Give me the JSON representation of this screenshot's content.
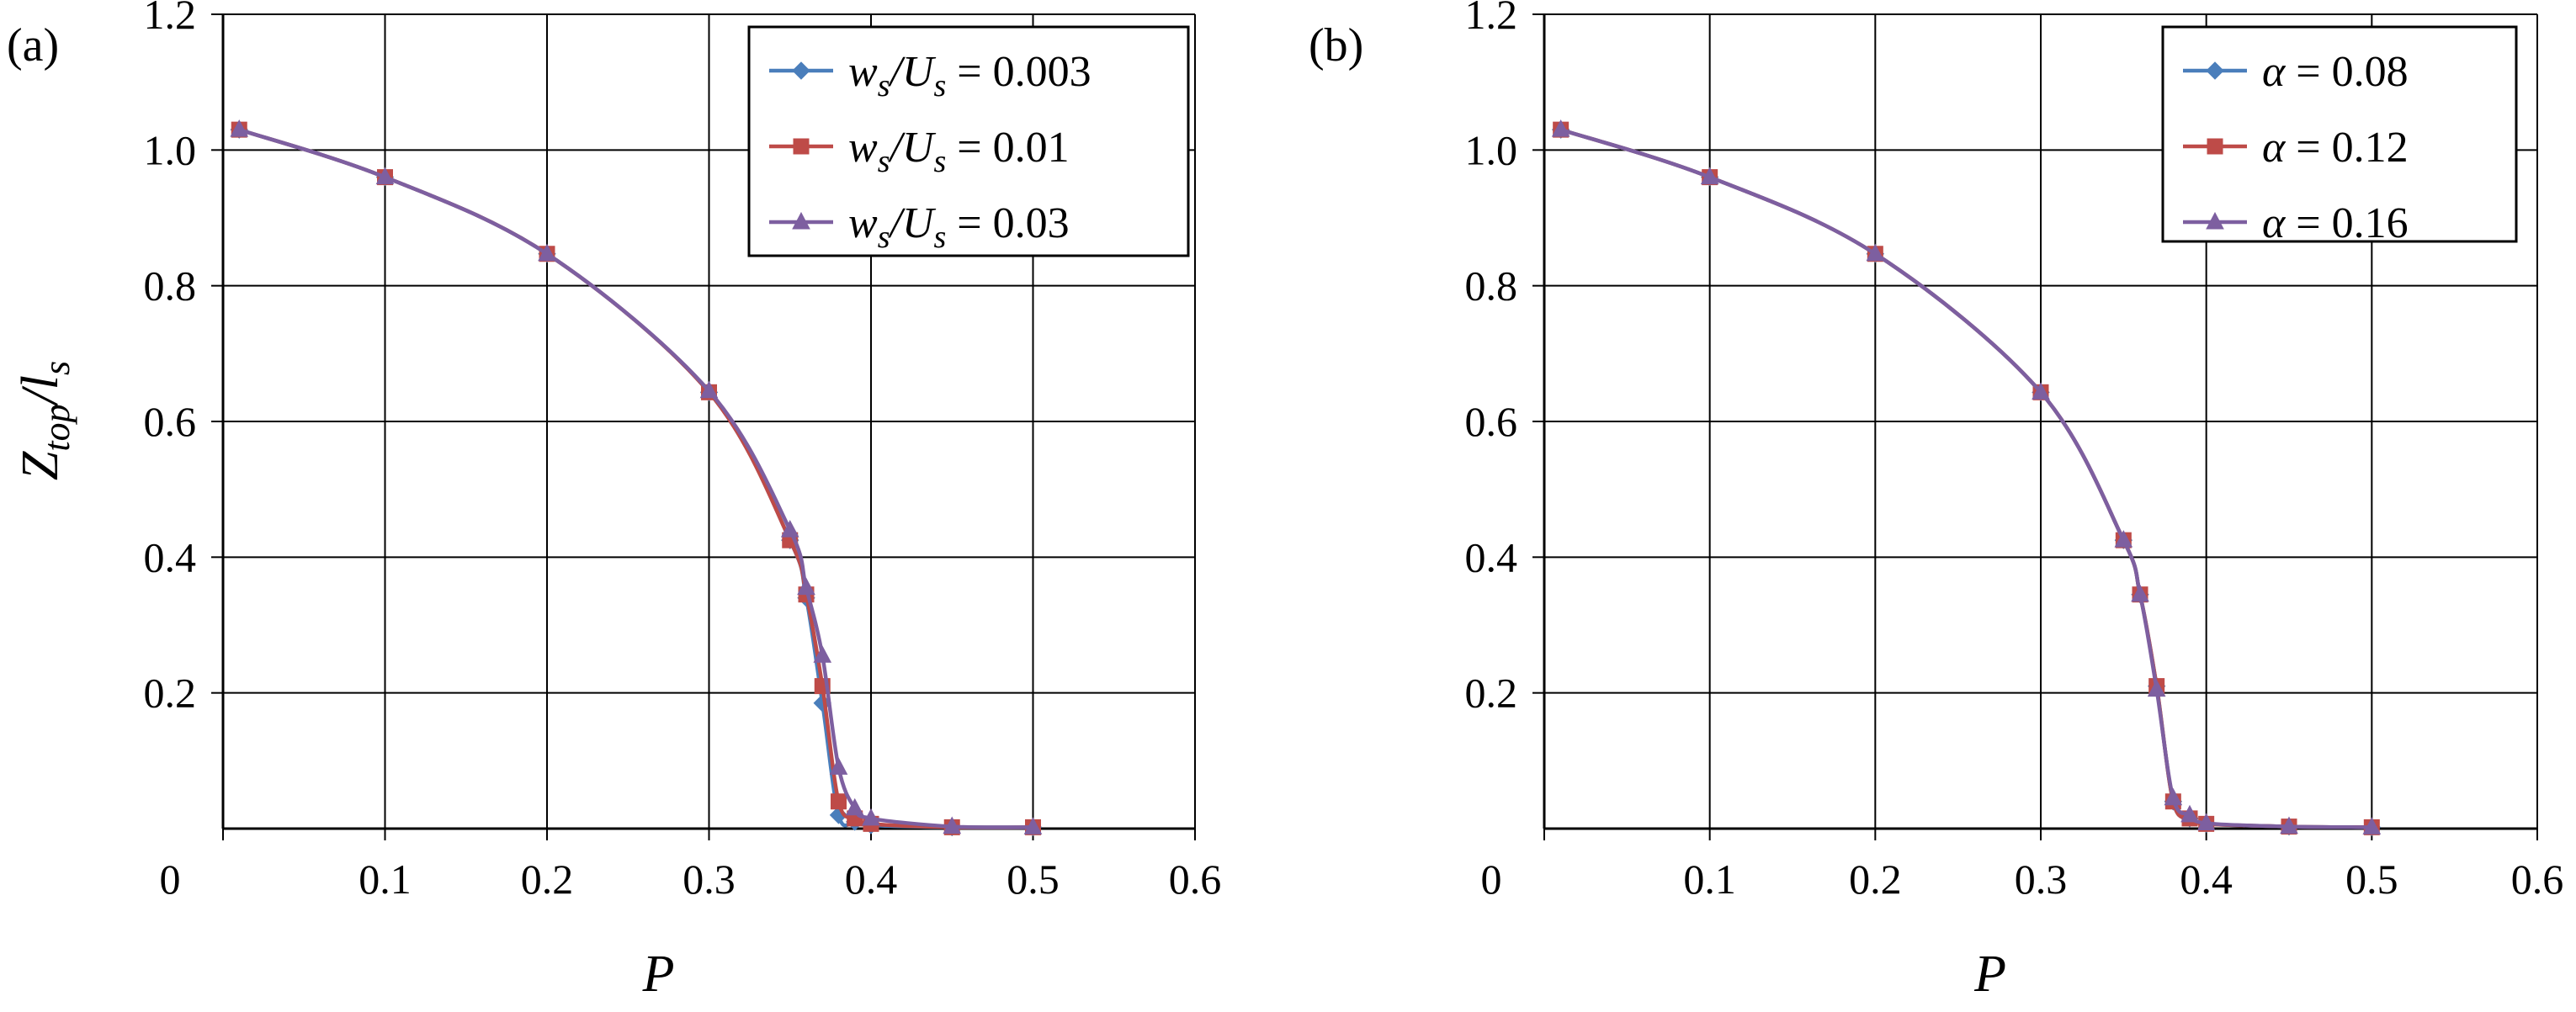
{
  "chart_data": [
    {
      "type": "line",
      "panel_label": "(a)",
      "xlabel": "P",
      "ylabel": "Z_top/l_s",
      "xlim": [
        0,
        0.6
      ],
      "ylim": [
        0,
        1.2
      ],
      "x_ticks": [
        0,
        0.1,
        0.2,
        0.3,
        0.4,
        0.5,
        0.6
      ],
      "x_tick_labels": [
        "0",
        "0.1",
        "0.2",
        "0.3",
        "0.4",
        "0.5",
        "0.6"
      ],
      "y_ticks": [
        0.2,
        0.4,
        0.6,
        0.8,
        1.0,
        1.2
      ],
      "y_tick_labels": [
        "0.2",
        "0.4",
        "0.6",
        "0.8",
        "1.0",
        "1.2"
      ],
      "grid": true,
      "legend_position": "top-right",
      "series": [
        {
          "name": "w_s/U_s = 0.003",
          "legend": {
            "lhs": "w",
            "lhs_sub": "s",
            "mid": "/U",
            "mid_sub": "s",
            "rhs": " = 0.003"
          },
          "color": "#4a7ebb",
          "marker": "diamond",
          "x": [
            0.01,
            0.1,
            0.2,
            0.3,
            0.35,
            0.36,
            0.37,
            0.38,
            0.39,
            0.4,
            0.45,
            0.5
          ],
          "y": [
            1.03,
            0.96,
            0.847,
            0.643,
            0.425,
            0.34,
            0.185,
            0.02,
            0.01,
            0.005,
            0.002,
            0.002
          ]
        },
        {
          "name": "w_s/U_s = 0.01",
          "legend": {
            "lhs": "w",
            "lhs_sub": "s",
            "mid": "/U",
            "mid_sub": "s",
            "rhs": " = 0.01"
          },
          "color": "#be4b48",
          "marker": "square",
          "x": [
            0.01,
            0.1,
            0.2,
            0.3,
            0.35,
            0.36,
            0.37,
            0.38,
            0.39,
            0.4,
            0.45,
            0.5
          ],
          "y": [
            1.03,
            0.96,
            0.847,
            0.643,
            0.425,
            0.345,
            0.21,
            0.04,
            0.015,
            0.007,
            0.002,
            0.002
          ]
        },
        {
          "name": "w_s/U_s = 0.03",
          "legend": {
            "lhs": "w",
            "lhs_sub": "s",
            "mid": "/U",
            "mid_sub": "s",
            "rhs": " = 0.03"
          },
          "color": "#7d5fa0",
          "marker": "triangle",
          "x": [
            0.01,
            0.1,
            0.2,
            0.3,
            0.35,
            0.36,
            0.37,
            0.38,
            0.39,
            0.4,
            0.45,
            0.5
          ],
          "y": [
            1.03,
            0.96,
            0.847,
            0.645,
            0.44,
            0.355,
            0.255,
            0.09,
            0.03,
            0.015,
            0.003,
            0.002
          ]
        }
      ]
    },
    {
      "type": "line",
      "panel_label": "(b)",
      "xlabel": "P",
      "ylabel": "",
      "xlim": [
        0,
        0.6
      ],
      "ylim": [
        0,
        1.2
      ],
      "x_ticks": [
        0,
        0.1,
        0.2,
        0.3,
        0.4,
        0.5,
        0.6
      ],
      "x_tick_labels": [
        "0",
        "0.1",
        "0.2",
        "0.3",
        "0.4",
        "0.5",
        "0.6"
      ],
      "y_ticks": [
        0.2,
        0.4,
        0.6,
        0.8,
        1.0,
        1.2
      ],
      "y_tick_labels": [
        "0.2",
        "0.4",
        "0.6",
        "0.8",
        "1.0",
        "1.2"
      ],
      "grid": true,
      "legend_position": "top-right",
      "series": [
        {
          "name": "α = 0.08",
          "legend": {
            "lhs": "α",
            "lhs_sub": "",
            "mid": "",
            "mid_sub": "",
            "rhs": " = 0.08"
          },
          "color": "#4a7ebb",
          "marker": "diamond",
          "x": [
            0.01,
            0.1,
            0.2,
            0.3,
            0.35,
            0.36,
            0.37,
            0.38,
            0.39,
            0.4,
            0.45,
            0.5
          ],
          "y": [
            1.03,
            0.96,
            0.847,
            0.643,
            0.425,
            0.345,
            0.21,
            0.04,
            0.015,
            0.007,
            0.003,
            0.002
          ]
        },
        {
          "name": "α = 0.12",
          "legend": {
            "lhs": "α",
            "lhs_sub": "",
            "mid": "",
            "mid_sub": "",
            "rhs": " = 0.12"
          },
          "color": "#be4b48",
          "marker": "square",
          "x": [
            0.01,
            0.1,
            0.2,
            0.3,
            0.35,
            0.36,
            0.37,
            0.38,
            0.39,
            0.4,
            0.45,
            0.5
          ],
          "y": [
            1.03,
            0.96,
            0.847,
            0.643,
            0.425,
            0.345,
            0.21,
            0.04,
            0.015,
            0.007,
            0.003,
            0.002
          ]
        },
        {
          "name": "α = 0.16",
          "legend": {
            "lhs": "α",
            "lhs_sub": "",
            "mid": "",
            "mid_sub": "",
            "rhs": " = 0.16"
          },
          "color": "#7d5fa0",
          "marker": "triangle",
          "x": [
            0.01,
            0.1,
            0.2,
            0.3,
            0.35,
            0.36,
            0.37,
            0.38,
            0.39,
            0.4,
            0.45,
            0.5
          ],
          "y": [
            1.03,
            0.96,
            0.847,
            0.643,
            0.425,
            0.345,
            0.205,
            0.045,
            0.02,
            0.008,
            0.003,
            0.002
          ]
        }
      ]
    }
  ]
}
